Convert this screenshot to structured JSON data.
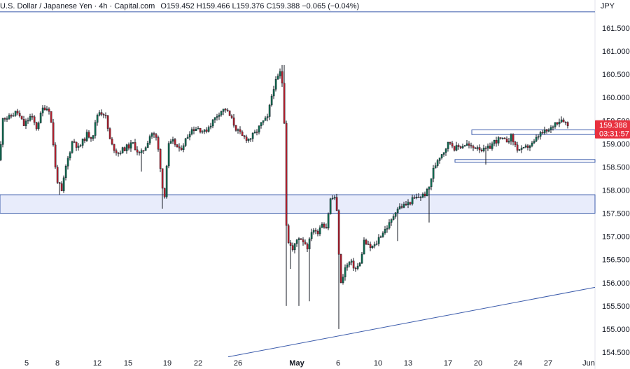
{
  "header": {
    "title": "U.S. Dollar / Japanese Yen · 4h · Capital.com",
    "ohlc": "O159.452 H159.466 L159.376 C159.388 −0.065 (−0.04%)",
    "currency": "JPY"
  },
  "price_tag": {
    "price": "159.388",
    "countdown": "03:31:57"
  },
  "colors": {
    "up": "#0d6b4f",
    "down": "#b21f2d",
    "line": "#3b5bab",
    "zone_fill": "#e8ecfb",
    "tag": "#e8313f"
  },
  "chart_data": {
    "type": "candlestick",
    "title": "U.S. Dollar / Japanese Yen · 4h · Capital.com",
    "ylim": [
      154.3,
      161.9
    ],
    "y_ticks": [
      "161.500",
      "161.000",
      "160.500",
      "160.000",
      "159.500",
      "159.000",
      "158.500",
      "158.000",
      "157.500",
      "157.000",
      "156.500",
      "156.000",
      "155.500",
      "155.000",
      "154.500"
    ],
    "x_ticks": [
      "5",
      "8",
      "12",
      "15",
      "19",
      "22",
      "26",
      "May",
      "6",
      "10",
      "13",
      "17",
      "20",
      "24",
      "27",
      "Jun"
    ],
    "path": [
      [
        0,
        158.65
      ],
      [
        3,
        159.6
      ],
      [
        12,
        159.55
      ],
      [
        24,
        159.7
      ],
      [
        34,
        159.4
      ],
      [
        44,
        159.6
      ],
      [
        52,
        159.35
      ],
      [
        62,
        159.8
      ],
      [
        70,
        159.75
      ],
      [
        74,
        159.35
      ],
      [
        80,
        158.3
      ],
      [
        88,
        157.95
      ],
      [
        94,
        158.5
      ],
      [
        104,
        159.1
      ],
      [
        112,
        158.9
      ],
      [
        124,
        159.2
      ],
      [
        132,
        159.15
      ],
      [
        140,
        159.7
      ],
      [
        150,
        159.65
      ],
      [
        158,
        159.0
      ],
      [
        168,
        158.8
      ],
      [
        178,
        158.9
      ],
      [
        190,
        159.0
      ],
      [
        200,
        158.75
      ],
      [
        208,
        158.95
      ],
      [
        216,
        159.25
      ],
      [
        224,
        159.1
      ],
      [
        230,
        158.4
      ],
      [
        234,
        157.7
      ],
      [
        240,
        158.95
      ],
      [
        248,
        159.05
      ],
      [
        256,
        158.85
      ],
      [
        264,
        159.05
      ],
      [
        272,
        159.3
      ],
      [
        282,
        159.35
      ],
      [
        292,
        159.25
      ],
      [
        302,
        159.45
      ],
      [
        314,
        159.7
      ],
      [
        322,
        159.75
      ],
      [
        330,
        159.55
      ],
      [
        338,
        159.3
      ],
      [
        346,
        159.15
      ],
      [
        356,
        159.1
      ],
      [
        366,
        159.25
      ],
      [
        374,
        159.45
      ],
      [
        382,
        159.55
      ],
      [
        390,
        160.2
      ],
      [
        396,
        160.4
      ],
      [
        402,
        160.6
      ],
      [
        406,
        159.5
      ],
      [
        408,
        157.4
      ],
      [
        412,
        156.9
      ],
      [
        418,
        156.7
      ],
      [
        426,
        157.0
      ],
      [
        434,
        156.9
      ],
      [
        440,
        156.75
      ],
      [
        446,
        157.2
      ],
      [
        452,
        157.05
      ],
      [
        460,
        157.3
      ],
      [
        466,
        157.2
      ],
      [
        472,
        157.8
      ],
      [
        478,
        157.85
      ],
      [
        482,
        157.4
      ],
      [
        486,
        155.9
      ],
      [
        492,
        156.3
      ],
      [
        500,
        156.45
      ],
      [
        508,
        156.3
      ],
      [
        514,
        156.4
      ],
      [
        520,
        156.9
      ],
      [
        528,
        156.75
      ],
      [
        536,
        156.8
      ],
      [
        542,
        157.0
      ],
      [
        550,
        157.15
      ],
      [
        558,
        157.3
      ],
      [
        566,
        157.6
      ],
      [
        574,
        157.65
      ],
      [
        582,
        157.7
      ],
      [
        590,
        157.8
      ],
      [
        598,
        157.85
      ],
      [
        606,
        157.9
      ],
      [
        612,
        158.0
      ],
      [
        618,
        158.4
      ],
      [
        626,
        158.7
      ],
      [
        634,
        158.85
      ],
      [
        642,
        159.05
      ],
      [
        650,
        158.9
      ],
      [
        658,
        158.95
      ],
      [
        666,
        159.0
      ],
      [
        674,
        158.9
      ],
      [
        682,
        158.95
      ],
      [
        690,
        158.85
      ],
      [
        698,
        158.9
      ],
      [
        706,
        159.05
      ],
      [
        714,
        159.1
      ],
      [
        722,
        159.05
      ],
      [
        730,
        159.15
      ],
      [
        738,
        158.9
      ],
      [
        746,
        158.85
      ],
      [
        754,
        158.95
      ],
      [
        762,
        159.0
      ],
      [
        770,
        159.2
      ],
      [
        778,
        159.25
      ],
      [
        786,
        159.3
      ],
      [
        792,
        159.45
      ],
      [
        798,
        159.5
      ],
      [
        804,
        159.55
      ],
      [
        808,
        159.45
      ],
      [
        811,
        159.39
      ]
    ],
    "levels": [
      {
        "type": "zone",
        "from": 157.5,
        "to": 157.9
      },
      {
        "type": "box",
        "x1": 674,
        "x2": 850,
        "from": 159.2,
        "to": 159.3
      },
      {
        "type": "box",
        "x1": 650,
        "x2": 850,
        "from": 158.6,
        "to": 158.66
      },
      {
        "type": "line",
        "y": 161.85
      }
    ],
    "trendline": {
      "x1": 326,
      "y1": 154.4,
      "x2": 850,
      "y2": 155.9
    }
  }
}
